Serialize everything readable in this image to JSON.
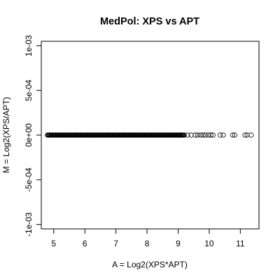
{
  "chart_data": {
    "type": "scatter",
    "title": "MedPol: XPS vs APT",
    "xlabel": "A = Log2(XPS*APT)",
    "ylabel": "M = Log2(XPS/APT)",
    "xlim": [
      4.6,
      11.6
    ],
    "ylim": [
      -0.00105,
      0.00105
    ],
    "x_ticks": [
      5,
      6,
      7,
      8,
      9,
      10,
      11
    ],
    "x_tick_labels": [
      "5",
      "6",
      "7",
      "8",
      "9",
      "10",
      "11"
    ],
    "y_ticks": [
      -0.001,
      -0.0005,
      0,
      0.0005,
      0.001
    ],
    "y_tick_labels": [
      "-1e-03",
      "-5e-04",
      "0e+00",
      "5e-04",
      "1e-03"
    ],
    "point_style": "open-circle",
    "dense_range": [
      4.8,
      9.2
    ],
    "dense_y": 0,
    "series": [
      {
        "x": [
          9.3,
          9.42,
          9.55,
          9.63,
          9.72,
          9.8,
          9.88,
          9.97,
          10.05,
          10.12,
          10.35,
          10.45,
          10.75,
          10.82,
          11.15,
          11.22,
          11.35
        ],
        "y": [
          0,
          0,
          0,
          0,
          0,
          0,
          0,
          0,
          0,
          0,
          0,
          0,
          0,
          0,
          0,
          0,
          0
        ]
      }
    ]
  }
}
